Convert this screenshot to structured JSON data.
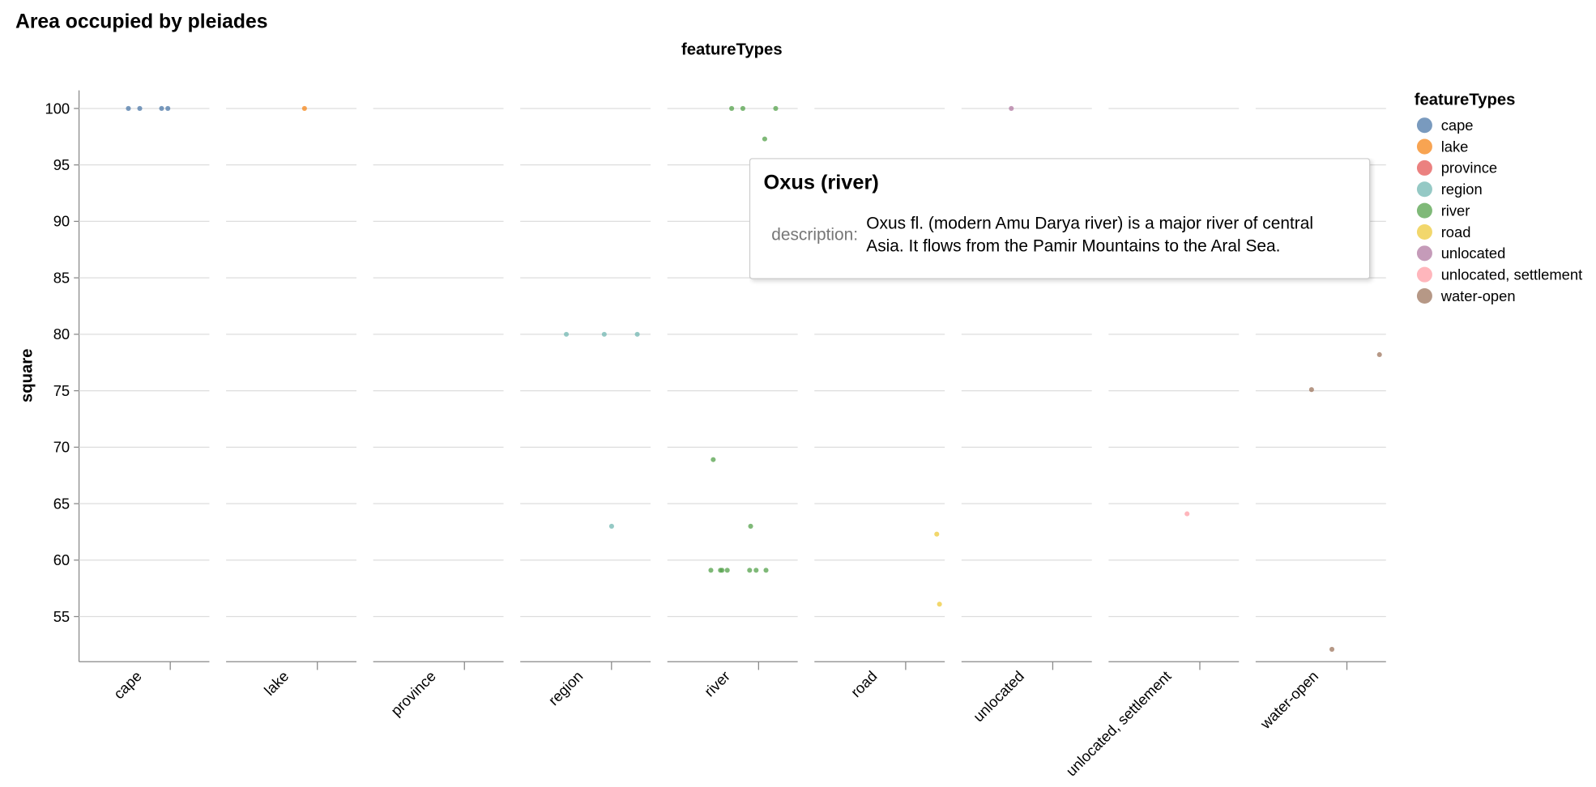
{
  "chart_data": {
    "type": "strip",
    "title": "Area occupied by pleiades",
    "facet_title": "featureTypes",
    "y_label": "square",
    "legend_title": "featureTypes",
    "ylim": [
      51,
      101.6
    ],
    "yticks": [
      55,
      60,
      65,
      70,
      75,
      80,
      85,
      90,
      95,
      100
    ],
    "grid": true,
    "legend_position": "right",
    "series": [
      {
        "name": "cape",
        "color": "#4c78a8",
        "values": [
          100,
          100,
          100,
          100
        ]
      },
      {
        "name": "lake",
        "color": "#f58518",
        "values": [
          100
        ]
      },
      {
        "name": "province",
        "color": "#e45756",
        "values": []
      },
      {
        "name": "region",
        "color": "#72b7b2",
        "values": [
          80,
          80,
          80,
          63
        ]
      },
      {
        "name": "river",
        "color": "#54a24b",
        "values": [
          100,
          100,
          100,
          97.3,
          68.9,
          63,
          59.1,
          59.1,
          59.1,
          59.1,
          59.1,
          59.1,
          59.1
        ]
      },
      {
        "name": "road",
        "color": "#eeca3b",
        "values": [
          62.3,
          56.1
        ]
      },
      {
        "name": "unlocated",
        "color": "#b279a2",
        "values": [
          100
        ]
      },
      {
        "name": "unlocated, settlement",
        "color": "#ff9da6",
        "values": [
          64.1
        ]
      },
      {
        "name": "water-open",
        "color": "#9d755d",
        "values": [
          78.2,
          75.1,
          52.1
        ]
      }
    ]
  },
  "tooltip": {
    "title": "Oxus (river)",
    "key": "description:",
    "value": "Oxus fl. (modern Amu Darya river) is a major river of central Asia. It flows from the Pamir Mountains to the Aral Sea."
  }
}
